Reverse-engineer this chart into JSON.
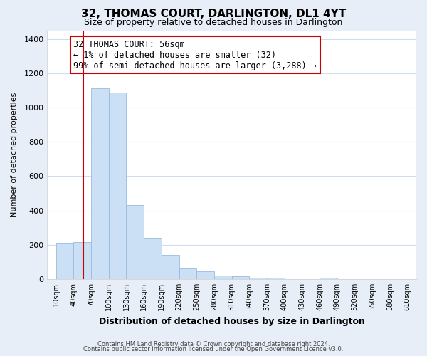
{
  "title": "32, THOMAS COURT, DARLINGTON, DL1 4YT",
  "subtitle": "Size of property relative to detached houses in Darlington",
  "xlabel": "Distribution of detached houses by size in Darlington",
  "ylabel": "Number of detached properties",
  "bar_edges": [
    10,
    40,
    70,
    100,
    130,
    160,
    190,
    220,
    250,
    280,
    310,
    340,
    370,
    400,
    430,
    460,
    490,
    520,
    550,
    580,
    610
  ],
  "bar_heights": [
    210,
    215,
    1110,
    1085,
    430,
    240,
    140,
    60,
    45,
    22,
    15,
    10,
    8,
    0,
    0,
    10,
    0,
    0,
    0,
    0
  ],
  "bar_color": "#cce0f5",
  "bar_edge_color": "#99bbdd",
  "vline_x": 56,
  "vline_color": "#cc0000",
  "annotation_text": "32 THOMAS COURT: 56sqm\n← 1% of detached houses are smaller (32)\n99% of semi-detached houses are larger (3,288) →",
  "annotation_box_color": "#ffffff",
  "annotation_box_edge": "#cc0000",
  "annotation_fontsize": 8.5,
  "ylim": [
    0,
    1450
  ],
  "yticks": [
    0,
    200,
    400,
    600,
    800,
    1000,
    1200,
    1400
  ],
  "tick_labels": [
    "10sqm",
    "40sqm",
    "70sqm",
    "100sqm",
    "130sqm",
    "160sqm",
    "190sqm",
    "220sqm",
    "250sqm",
    "280sqm",
    "310sqm",
    "340sqm",
    "370sqm",
    "400sqm",
    "430sqm",
    "460sqm",
    "490sqm",
    "520sqm",
    "550sqm",
    "580sqm",
    "610sqm"
  ],
  "footer1": "Contains HM Land Registry data © Crown copyright and database right 2024.",
  "footer2": "Contains public sector information licensed under the Open Government Licence v3.0.",
  "background_color": "#e8eef7",
  "plot_background": "#ffffff",
  "grid_color": "#d0ddf0",
  "title_fontsize": 11,
  "subtitle_fontsize": 9
}
